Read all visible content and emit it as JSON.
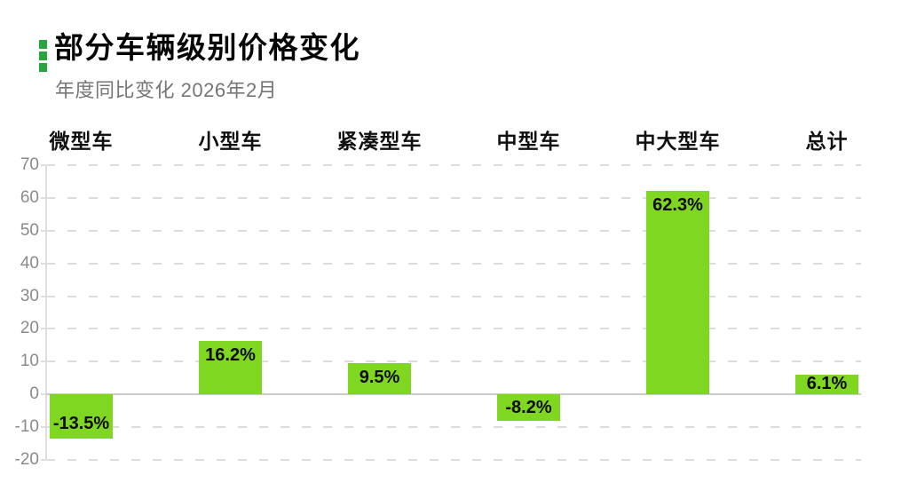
{
  "header": {
    "title": "部分车辆级别价格变化",
    "subtitle": "年度同比变化 2026年2月"
  },
  "colors": {
    "bar": "#80d721",
    "title_marker": "#26a63c",
    "gridline": "#dddddd",
    "zero_line": "#cbcbcb",
    "axis_line": "#dedede",
    "value_label_text": "#0b0b0b",
    "tick_text": "#8a8a8a",
    "subtitle_text": "#757575"
  },
  "chart_data": {
    "type": "bar",
    "title": "部分车辆级别价格变化",
    "subtitle": "年度同比变化 2026年2月",
    "categories": [
      "微型车",
      "小型车",
      "紧凑型车",
      "中型车",
      "中大型车",
      "总计"
    ],
    "values": [
      -13.5,
      16.2,
      9.5,
      -8.2,
      62.3,
      6.1
    ],
    "value_labels": [
      "-13.5%",
      "16.2%",
      "9.5%",
      "-8.2%",
      "62.3%",
      "6.1%"
    ],
    "unit": "%",
    "ylim": [
      -20,
      70
    ],
    "yticks": [
      70,
      60,
      50,
      40,
      30,
      20,
      10,
      0,
      -10,
      -20
    ],
    "xlabel": "",
    "ylabel": "",
    "grid": "horizontal-dashed",
    "legend": "none",
    "category_label_position": "top",
    "value_label_position": "inside-end"
  }
}
